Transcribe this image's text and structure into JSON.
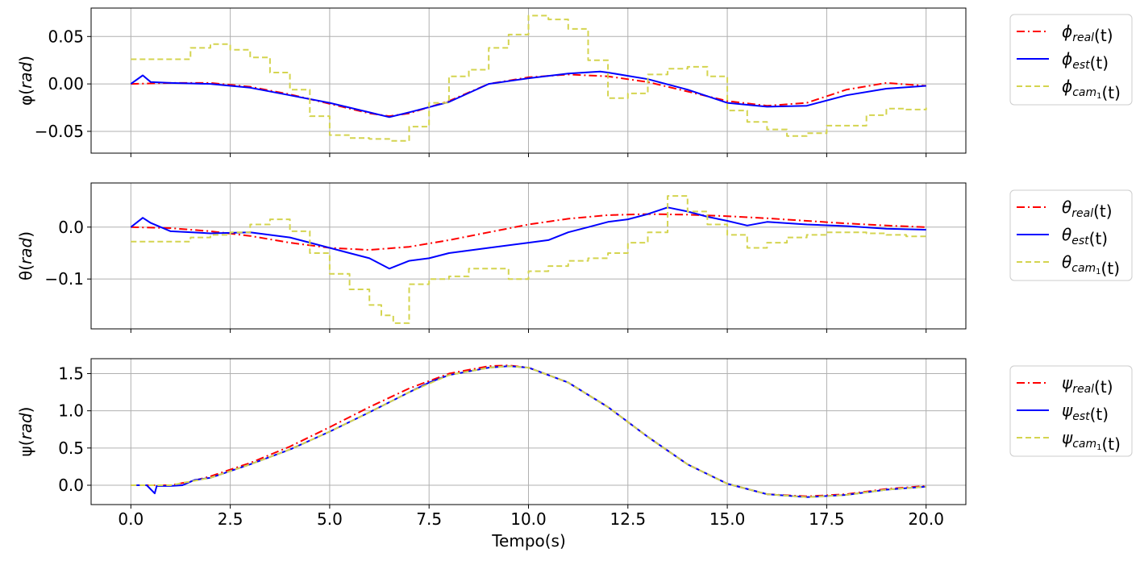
{
  "figure": {
    "xlabel": "Tempo(s)"
  },
  "chart_data": [
    {
      "type": "line",
      "ylabel": {
        "main": "φ(",
        "var": "rad",
        "close": ")"
      },
      "xlim": [
        -1.0,
        21.0
      ],
      "ylim": [
        -0.073,
        0.08
      ],
      "yticks": [
        {
          "v": 0.05,
          "label": "0.05"
        },
        {
          "v": 0.0,
          "label": "0.00"
        },
        {
          "v": -0.05,
          "label": "−0.05"
        }
      ],
      "grid": true,
      "legend_position": "outside-right",
      "series": [
        {
          "key": "real",
          "name": {
            "sym": "ϕ",
            "sub": "real",
            "sub2": "",
            "tail": "(t)"
          },
          "color": "#ff0000",
          "dash": "dashdot",
          "x": [
            0,
            1,
            2,
            3,
            4,
            5,
            6,
            6.5,
            7,
            8,
            9,
            10,
            11,
            12,
            13,
            14,
            15,
            16,
            17,
            18,
            19,
            20
          ],
          "y": [
            0,
            0.001,
            0.001,
            -0.003,
            -0.011,
            -0.021,
            -0.031,
            -0.034,
            -0.031,
            -0.018,
            0.0,
            0.007,
            0.01,
            0.008,
            0.002,
            -0.008,
            -0.018,
            -0.023,
            -0.02,
            -0.006,
            0.001,
            -0.002
          ]
        },
        {
          "key": "est",
          "name": {
            "sym": "ϕ",
            "sub": "est",
            "sub2": "",
            "tail": "(t)"
          },
          "color": "#0000ff",
          "dash": "solid",
          "x": [
            0,
            0.3,
            0.5,
            1,
            2,
            3,
            4,
            5,
            6,
            6.5,
            7,
            8,
            9,
            10,
            11,
            11.8,
            12,
            13,
            14,
            15,
            16,
            17,
            18,
            19,
            20
          ],
          "y": [
            0,
            0.009,
            0.002,
            0.001,
            0.0,
            -0.004,
            -0.012,
            -0.02,
            -0.03,
            -0.035,
            -0.03,
            -0.019,
            0.0,
            0.006,
            0.011,
            0.013,
            0.012,
            0.005,
            -0.006,
            -0.02,
            -0.024,
            -0.023,
            -0.012,
            -0.005,
            -0.002
          ]
        },
        {
          "key": "cam",
          "name": {
            "sym": "ϕ",
            "sub": "cam",
            "sub2": "1",
            "tail": "(t)"
          },
          "color": "#d4d44f",
          "dash": "dashed",
          "step": true,
          "x": [
            0,
            1.5,
            2,
            2.5,
            3,
            3.5,
            4,
            4.5,
            5,
            5.5,
            6,
            6.5,
            7,
            7.5,
            8,
            8.5,
            9,
            9.5,
            10,
            10.5,
            11,
            11.5,
            12,
            12.5,
            13,
            13.5,
            14,
            14.5,
            15,
            15.5,
            16,
            16.5,
            17,
            17.5,
            18,
            18.5,
            19,
            19.5,
            20
          ],
          "y": [
            0.026,
            0.038,
            0.042,
            0.036,
            0.028,
            0.012,
            -0.006,
            -0.034,
            -0.054,
            -0.057,
            -0.058,
            -0.06,
            -0.045,
            -0.02,
            0.008,
            0.015,
            0.038,
            0.052,
            0.072,
            0.068,
            0.058,
            0.025,
            -0.015,
            -0.01,
            0.01,
            0.016,
            0.018,
            0.008,
            -0.028,
            -0.04,
            -0.048,
            -0.055,
            -0.052,
            -0.044,
            -0.044,
            -0.033,
            -0.026,
            -0.027,
            -0.025
          ]
        }
      ]
    },
    {
      "type": "line",
      "ylabel": {
        "main": "θ(",
        "var": "rad",
        "close": ")"
      },
      "xlim": [
        -1.0,
        21.0
      ],
      "ylim": [
        -0.196,
        0.085
      ],
      "yticks": [
        {
          "v": 0.0,
          "label": "0.0"
        },
        {
          "v": -0.1,
          "label": "−0.1"
        }
      ],
      "grid": true,
      "legend_position": "outside-right",
      "series": [
        {
          "key": "real",
          "name": {
            "sym": "θ",
            "sub": "real",
            "sub2": "",
            "tail": "(t)"
          },
          "color": "#ff0000",
          "dash": "dashdot",
          "x": [
            0,
            1,
            2,
            3,
            4,
            5,
            6,
            7,
            8,
            9,
            10,
            11,
            12,
            13,
            14,
            15,
            16,
            17,
            18,
            19,
            20
          ],
          "y": [
            0,
            -0.002,
            -0.008,
            -0.017,
            -0.03,
            -0.04,
            -0.044,
            -0.038,
            -0.025,
            -0.01,
            0.005,
            0.016,
            0.023,
            0.025,
            0.024,
            0.021,
            0.017,
            0.012,
            0.007,
            0.003,
            0.0
          ]
        },
        {
          "key": "est",
          "name": {
            "sym": "θ",
            "sub": "est",
            "sub2": "",
            "tail": "(t)"
          },
          "color": "#0000ff",
          "dash": "solid",
          "x": [
            0,
            0.3,
            0.5,
            1,
            2,
            3,
            4,
            5,
            5.5,
            6,
            6.5,
            7,
            7.5,
            8,
            9,
            10,
            10.5,
            11,
            11.5,
            12,
            12.5,
            13,
            13.5,
            14,
            14.5,
            15,
            15.5,
            16,
            17,
            18,
            19,
            20
          ],
          "y": [
            0,
            0.018,
            0.008,
            -0.008,
            -0.012,
            -0.01,
            -0.02,
            -0.04,
            -0.05,
            -0.06,
            -0.08,
            -0.065,
            -0.06,
            -0.05,
            -0.04,
            -0.03,
            -0.025,
            -0.01,
            0.0,
            0.01,
            0.015,
            0.025,
            0.038,
            0.03,
            0.02,
            0.012,
            0.003,
            0.01,
            0.005,
            0.002,
            -0.003,
            -0.005
          ]
        },
        {
          "key": "cam",
          "name": {
            "sym": "θ",
            "sub": "cam",
            "sub2": "1",
            "tail": "(t)"
          },
          "color": "#d4d44f",
          "dash": "dashed",
          "step": true,
          "x": [
            0,
            1,
            1.5,
            2,
            2.5,
            3,
            3.5,
            4,
            4.5,
            5,
            5.5,
            6,
            6.3,
            6.6,
            7,
            7.5,
            8,
            8.5,
            9,
            9.5,
            10,
            10.5,
            11,
            11.5,
            12,
            12.5,
            13,
            13.5,
            14,
            14.5,
            15,
            15.5,
            16,
            16.5,
            17,
            17.5,
            18,
            18.5,
            19,
            19.5,
            20
          ],
          "y": [
            -0.028,
            -0.028,
            -0.02,
            -0.015,
            -0.01,
            0.005,
            0.015,
            -0.008,
            -0.05,
            -0.09,
            -0.12,
            -0.15,
            -0.17,
            -0.185,
            -0.11,
            -0.1,
            -0.095,
            -0.08,
            -0.08,
            -0.1,
            -0.085,
            -0.075,
            -0.065,
            -0.06,
            -0.05,
            -0.03,
            -0.01,
            0.06,
            0.03,
            0.005,
            -0.015,
            -0.04,
            -0.03,
            -0.02,
            -0.015,
            -0.01,
            -0.01,
            -0.012,
            -0.015,
            -0.018,
            -0.015
          ]
        }
      ]
    },
    {
      "type": "line",
      "ylabel": {
        "main": "ψ(",
        "var": "rad",
        "close": ")"
      },
      "xlim": [
        -1.0,
        21.0
      ],
      "ylim": [
        -0.26,
        1.7
      ],
      "yticks": [
        {
          "v": 1.5,
          "label": "1.5"
        },
        {
          "v": 1.0,
          "label": "1.0"
        },
        {
          "v": 0.5,
          "label": "0.5"
        },
        {
          "v": 0.0,
          "label": "0.0"
        }
      ],
      "xticks": [
        {
          "v": 0,
          "label": "0.0"
        },
        {
          "v": 2.5,
          "label": "2.5"
        },
        {
          "v": 5,
          "label": "5.0"
        },
        {
          "v": 7.5,
          "label": "7.5"
        },
        {
          "v": 10,
          "label": "10.0"
        },
        {
          "v": 12.5,
          "label": "12.5"
        },
        {
          "v": 15,
          "label": "15.0"
        },
        {
          "v": 17.5,
          "label": "17.5"
        },
        {
          "v": 20,
          "label": "20.0"
        }
      ],
      "grid": true,
      "legend_position": "outside-right",
      "series": [
        {
          "key": "real",
          "name": {
            "sym": "ψ",
            "sub": "real",
            "sub2": "",
            "tail": "(t)"
          },
          "color": "#ff0000",
          "dash": "dashdot",
          "x": [
            0,
            1,
            1.5,
            2,
            3,
            4,
            5,
            6,
            7,
            8,
            9,
            9.5,
            10,
            11,
            12,
            13,
            14,
            15,
            16,
            17,
            18,
            19,
            20
          ],
          "y": [
            0,
            0,
            0.05,
            0.12,
            0.3,
            0.52,
            0.78,
            1.05,
            1.3,
            1.5,
            1.6,
            1.61,
            1.58,
            1.38,
            1.05,
            0.65,
            0.28,
            0.02,
            -0.12,
            -0.15,
            -0.12,
            -0.05,
            -0.01
          ]
        },
        {
          "key": "est",
          "name": {
            "sym": "ψ",
            "sub": "est",
            "sub2": "",
            "tail": "(t)"
          },
          "color": "#0000ff",
          "dash": "solid",
          "x": [
            0,
            0.4,
            0.6,
            0.65,
            1,
            1.3,
            1.6,
            2,
            3,
            4,
            5,
            6,
            7,
            7.5,
            8,
            9,
            9.5,
            10,
            11,
            12,
            13,
            14,
            15,
            16,
            17,
            18,
            19,
            20
          ],
          "y": [
            0,
            0,
            -0.11,
            -0.01,
            -0.01,
            0,
            0.07,
            0.1,
            0.28,
            0.48,
            0.72,
            0.98,
            1.25,
            1.38,
            1.48,
            1.58,
            1.6,
            1.58,
            1.38,
            1.05,
            0.65,
            0.28,
            0.02,
            -0.12,
            -0.16,
            -0.13,
            -0.06,
            -0.02
          ]
        },
        {
          "key": "cam",
          "name": {
            "sym": "ψ",
            "sub": "cam",
            "sub2": "1",
            "tail": "(t)"
          },
          "color": "#d4d44f",
          "dash": "dashed",
          "x": [
            0,
            1,
            1.5,
            2,
            3,
            4,
            5,
            6,
            7,
            8,
            9,
            9.5,
            10,
            11,
            12,
            13,
            14,
            15,
            16,
            17,
            18,
            19,
            20
          ],
          "y": [
            0,
            0,
            0.05,
            0.1,
            0.28,
            0.48,
            0.72,
            0.98,
            1.25,
            1.48,
            1.58,
            1.6,
            1.58,
            1.38,
            1.05,
            0.65,
            0.28,
            0.02,
            -0.12,
            -0.16,
            -0.13,
            -0.06,
            -0.02
          ]
        }
      ]
    }
  ]
}
